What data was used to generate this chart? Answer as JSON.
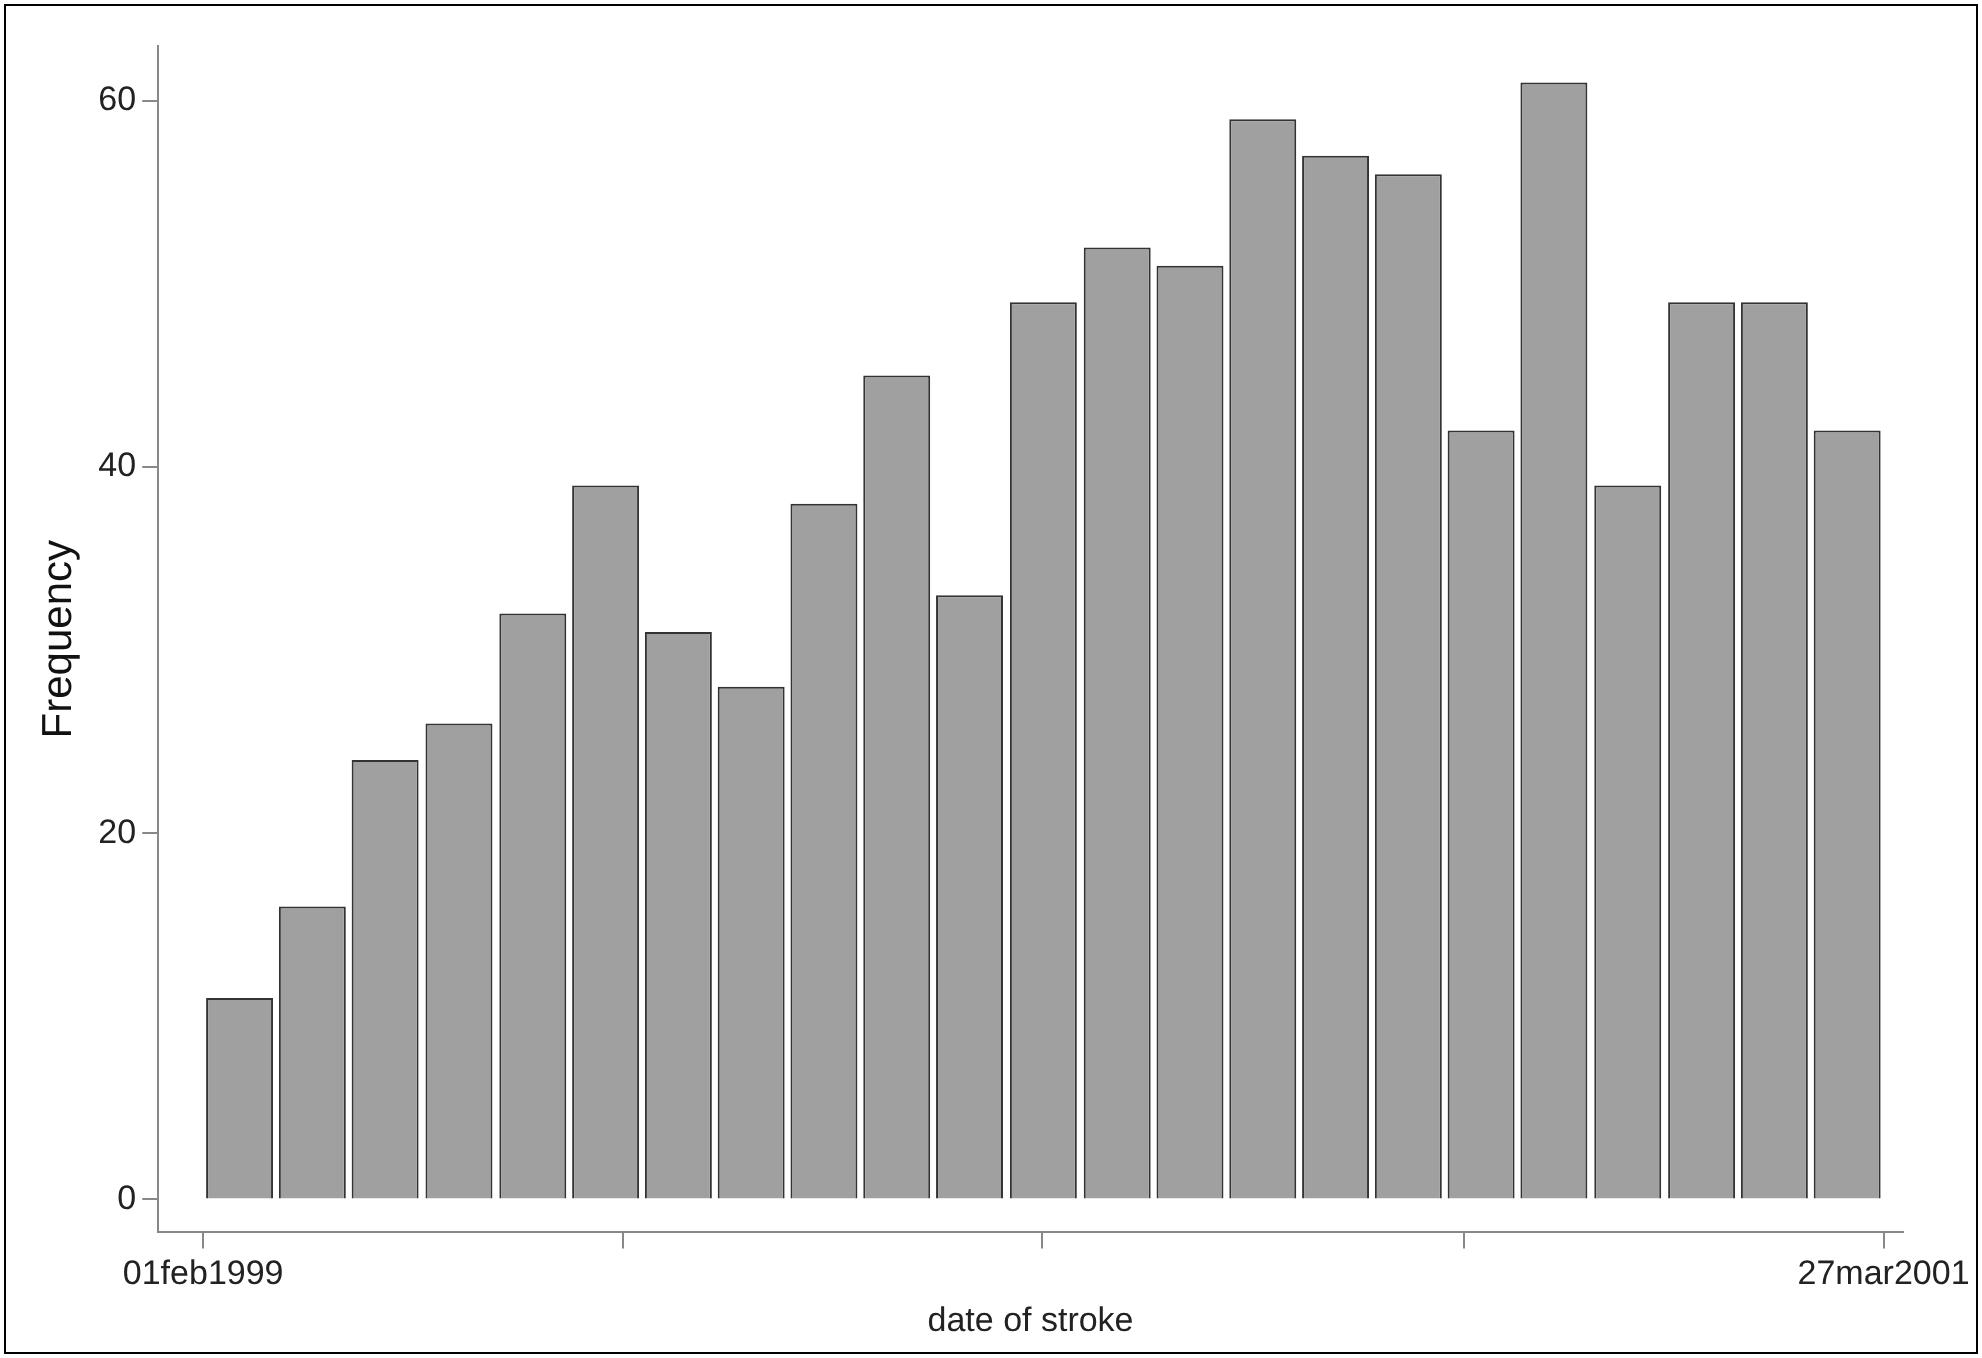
{
  "chart_data": {
    "type": "histogram",
    "xlabel": "date of stroke",
    "ylabel": "Frequency",
    "bins": [
      "1999-02-01",
      "1999-03-07",
      "1999-04-10",
      "1999-05-14",
      "1999-06-18",
      "1999-07-22",
      "1999-08-25",
      "1999-09-28",
      "1999-11-01",
      "1999-12-05",
      "2000-01-08",
      "2000-02-11",
      "2000-03-17",
      "2000-04-20",
      "2000-05-24",
      "2000-06-27",
      "2000-07-31",
      "2000-09-03",
      "2000-10-07",
      "2000-11-10",
      "2000-12-15",
      "2001-01-18",
      "2001-02-21",
      "2001-03-27"
    ],
    "values": [
      11,
      16,
      24,
      26,
      32,
      39,
      31,
      28,
      38,
      45,
      33,
      49,
      52,
      51,
      59,
      57,
      56,
      42,
      61,
      39,
      49,
      49,
      42
    ],
    "color": "#a0a0a0",
    "xlim": [
      "1999-01-11",
      "2001-04-05"
    ],
    "xticks": [
      {
        "value": "1999-02-01",
        "label": "01feb1999"
      },
      {
        "value": "1999-08-16",
        "label": null
      },
      {
        "value": "2000-02-28",
        "label": null
      },
      {
        "value": "2000-09-12",
        "label": null
      },
      {
        "value": "2001-03-27",
        "label": "27mar2001"
      }
    ],
    "ylim": [
      -1.8,
      63
    ],
    "yticks": [
      0,
      20,
      40,
      60
    ],
    "grid": false,
    "legend": false
  }
}
